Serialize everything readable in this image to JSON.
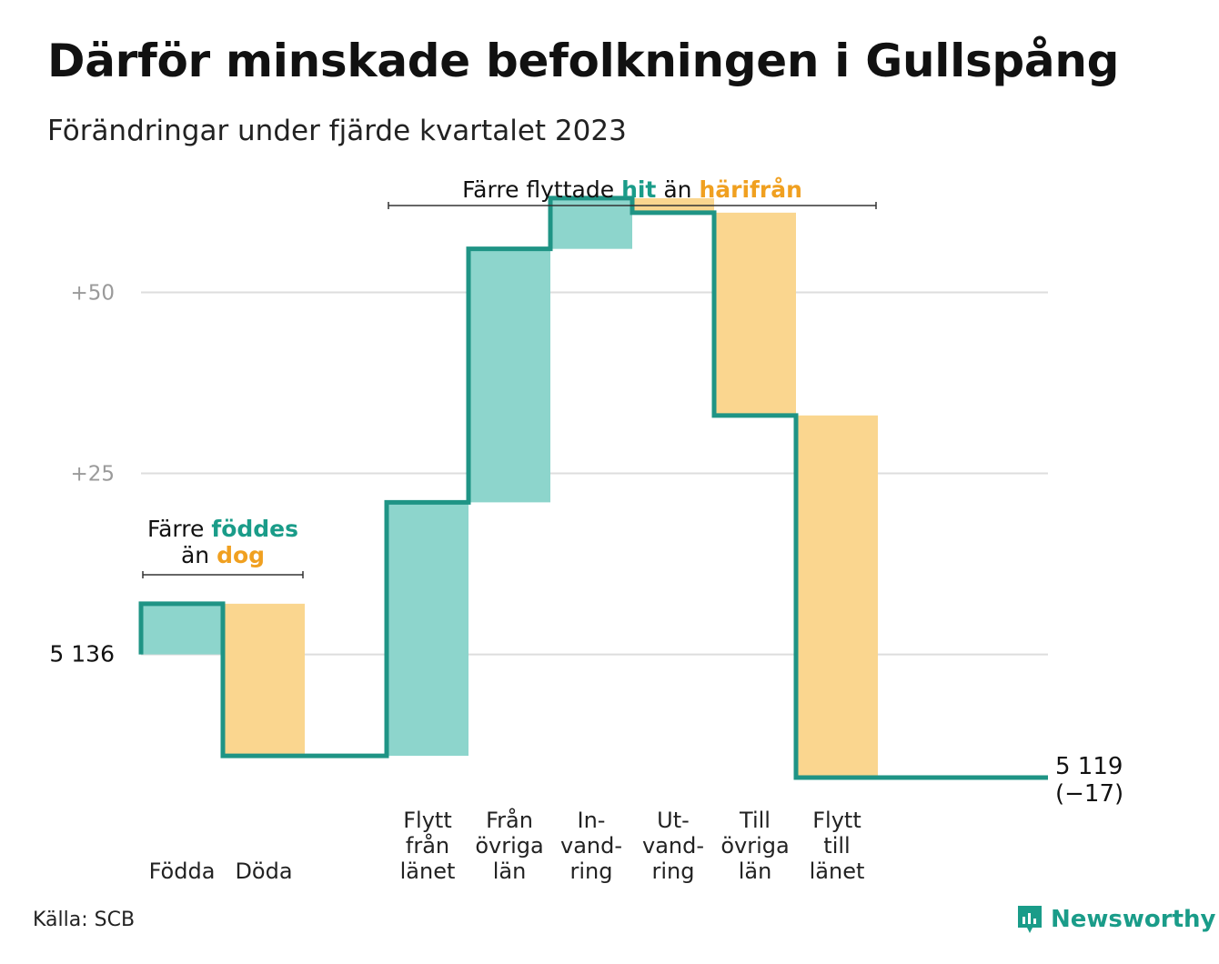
{
  "header": {
    "title": "Därför minskade befolkningen i Gullspång",
    "subtitle": "Förändringar under fjärde kvartalet 2023"
  },
  "footer": {
    "source": "Källa: SCB",
    "logo_text": "Newsworthy"
  },
  "colors": {
    "increase": "#8dd5cc",
    "decrease": "#fad68f",
    "line": "#1f9485",
    "grid": "#dddddd",
    "accent_teal": "#1a9c89",
    "accent_orange": "#f0a020"
  },
  "chart_data": {
    "type": "waterfall",
    "baseline": 5136,
    "baseline_label": "5  136",
    "ylim": [
      5120,
      5201
    ],
    "y_ticks": [
      {
        "value": 5136,
        "label": "5  136"
      },
      {
        "value": 5161,
        "label": "+25"
      },
      {
        "value": 5186,
        "label": "+50"
      }
    ],
    "steps": [
      {
        "label": [
          "Födda"
        ],
        "change": 7,
        "kind": "increase"
      },
      {
        "label": [
          "Döda"
        ],
        "change": -21,
        "kind": "decrease"
      },
      {
        "label": [],
        "change": 0,
        "kind": "gap"
      },
      {
        "label": [
          "Flytt",
          "från",
          "länet"
        ],
        "change": 35,
        "kind": "increase"
      },
      {
        "label": [
          "Från",
          "övriga",
          "län"
        ],
        "change": 35,
        "kind": "increase"
      },
      {
        "label": [
          "In-",
          "vand-",
          "ring"
        ],
        "change": 7,
        "kind": "increase"
      },
      {
        "label": [
          "Ut-",
          "vand-",
          "ring"
        ],
        "change": -2,
        "kind": "decrease"
      },
      {
        "label": [
          "Till",
          "övriga",
          "län"
        ],
        "change": -28,
        "kind": "decrease"
      },
      {
        "label": [
          "Flytt",
          "till",
          "länet"
        ],
        "change": -50,
        "kind": "decrease"
      }
    ],
    "end_value": 5119,
    "end_label": "5 119",
    "end_change_label": "(−17)",
    "annotations": [
      {
        "id": "births",
        "lines": [
          [
            {
              "text": "Färre ",
              "style": "plain"
            },
            {
              "text": "föddes",
              "style": "teal"
            }
          ],
          [
            {
              "text": "än ",
              "style": "plain"
            },
            {
              "text": "dog",
              "style": "orange"
            }
          ]
        ],
        "span": [
          0,
          1
        ]
      },
      {
        "id": "migration",
        "lines": [
          [
            {
              "text": "Färre flyttade ",
              "style": "plain"
            },
            {
              "text": "hit",
              "style": "teal"
            },
            {
              "text": " än ",
              "style": "plain"
            },
            {
              "text": "härifrån",
              "style": "orange"
            }
          ]
        ],
        "span": [
          3,
          8
        ]
      }
    ]
  }
}
